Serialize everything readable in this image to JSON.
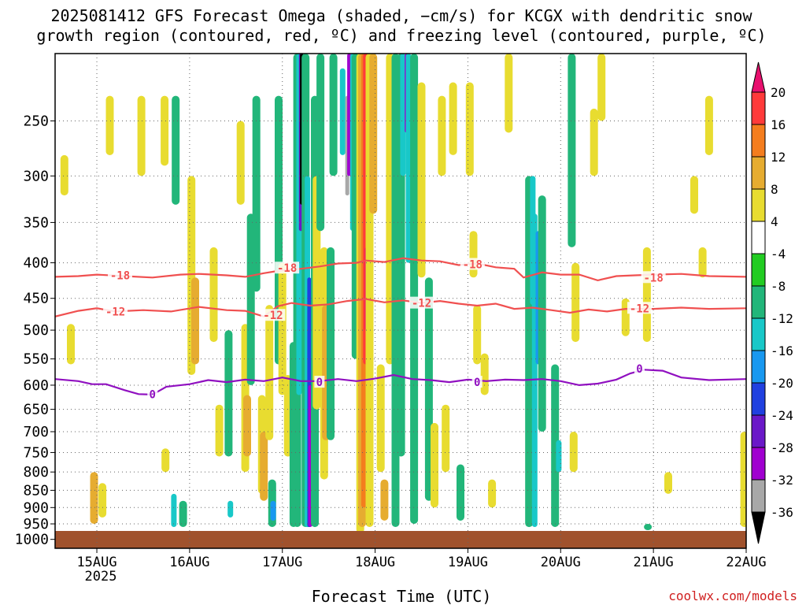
{
  "chart_data": {
    "type": "heatmap",
    "title_line1": "2025081412 GFS Forecast Omega (shaded, −cm/s) for KCGX with dendritic snow",
    "title_line2": "growth region (contoured, red, ºC) and freezing level (contoured, purple, ºC)",
    "xlabel": "Forecast Time (UTC)",
    "ylabel": "",
    "credit": "coolwx.com/models",
    "x_ticks": [
      "15AUG",
      "16AUG",
      "17AUG",
      "18AUG",
      "19AUG",
      "20AUG",
      "21AUG",
      "22AUG"
    ],
    "x_tick_days": [
      1,
      2,
      3,
      4,
      5,
      6,
      7,
      8
    ],
    "x_year": "2025",
    "xlim_days": [
      0.55,
      8.0
    ],
    "y_ticks": [
      250,
      300,
      350,
      400,
      450,
      500,
      550,
      600,
      650,
      700,
      750,
      800,
      850,
      900,
      950,
      1000
    ],
    "ylim_hpa": [
      200,
      1030
    ],
    "y_scale": "log",
    "grid": true,
    "colorbar": {
      "labels": [
        "20",
        "16",
        "12",
        "8",
        "4",
        "-4",
        "-8",
        "-12",
        "-16",
        "-20",
        "-24",
        "-28",
        "-32",
        "-36"
      ],
      "colors": [
        "#e8106e",
        "#ff3a3a",
        "#f47d1e",
        "#e6ac30",
        "#e8dc30",
        "#ffffff",
        "#22cc22",
        "#22b67a",
        "#18c8c8",
        "#1898f0",
        "#2040e0",
        "#6a18c8",
        "#a000d0",
        "#a8a8a8",
        "#000000"
      ]
    },
    "omega_bands": [
      {
        "t": 0.97,
        "p0": 800,
        "p1": 950,
        "v": 8
      },
      {
        "t": 1.06,
        "p0": 830,
        "p1": 930,
        "v": 4
      },
      {
        "t": 0.65,
        "p0": 280,
        "p1": 320,
        "v": 4
      },
      {
        "t": 0.72,
        "p0": 490,
        "p1": 560,
        "v": 4
      },
      {
        "t": 1.14,
        "p0": 230,
        "p1": 280,
        "v": 4
      },
      {
        "t": 1.48,
        "p0": 230,
        "p1": 300,
        "v": 4
      },
      {
        "t": 1.73,
        "p0": 230,
        "p1": 290,
        "v": 4
      },
      {
        "t": 1.85,
        "p0": 230,
        "p1": 330,
        "v": -8
      },
      {
        "t": 1.83,
        "p0": 860,
        "p1": 960,
        "v": -12
      },
      {
        "t": 1.93,
        "p0": 880,
        "p1": 960,
        "v": -8
      },
      {
        "t": 1.74,
        "p0": 740,
        "p1": 800,
        "v": 4
      },
      {
        "t": 2.02,
        "p0": 300,
        "p1": 580,
        "v": 4
      },
      {
        "t": 2.06,
        "p0": 420,
        "p1": 560,
        "v": 8
      },
      {
        "t": 2.26,
        "p0": 380,
        "p1": 520,
        "v": 4
      },
      {
        "t": 2.32,
        "p0": 640,
        "p1": 760,
        "v": 4
      },
      {
        "t": 2.42,
        "p0": 500,
        "p1": 760,
        "v": -8
      },
      {
        "t": 2.44,
        "p0": 880,
        "p1": 930,
        "v": -12
      },
      {
        "t": 2.55,
        "p0": 250,
        "p1": 330,
        "v": 4
      },
      {
        "t": 2.6,
        "p0": 490,
        "p1": 800,
        "v": 4
      },
      {
        "t": 2.62,
        "p0": 620,
        "p1": 760,
        "v": 8
      },
      {
        "t": 2.66,
        "p0": 340,
        "p1": 600,
        "v": -8
      },
      {
        "t": 2.72,
        "p0": 230,
        "p1": 440,
        "v": -8
      },
      {
        "t": 2.78,
        "p0": 620,
        "p1": 860,
        "v": 4
      },
      {
        "t": 2.8,
        "p0": 700,
        "p1": 880,
        "v": 8
      },
      {
        "t": 2.86,
        "p0": 460,
        "p1": 720,
        "v": 4
      },
      {
        "t": 2.89,
        "p0": 820,
        "p1": 960,
        "v": -8
      },
      {
        "t": 2.9,
        "p0": 880,
        "p1": 940,
        "v": -16
      },
      {
        "t": 2.96,
        "p0": 230,
        "p1": 560,
        "v": -8
      },
      {
        "t": 3.0,
        "p0": 400,
        "p1": 620,
        "v": 4
      },
      {
        "t": 3.06,
        "p0": 580,
        "p1": 760,
        "v": 4
      },
      {
        "t": 3.12,
        "p0": 520,
        "p1": 960,
        "v": -8
      },
      {
        "t": 3.16,
        "p0": 200,
        "p1": 960,
        "v": -8
      },
      {
        "t": 3.18,
        "p0": 200,
        "p1": 620,
        "v": -12
      },
      {
        "t": 3.2,
        "p0": 200,
        "p1": 360,
        "v": -24
      },
      {
        "t": 3.21,
        "p0": 200,
        "p1": 330,
        "v": -36
      },
      {
        "t": 3.25,
        "p0": 200,
        "p1": 960,
        "v": -8
      },
      {
        "t": 3.27,
        "p0": 300,
        "p1": 960,
        "v": -12
      },
      {
        "t": 3.29,
        "p0": 420,
        "p1": 960,
        "v": -20
      },
      {
        "t": 3.3,
        "p0": 600,
        "p1": 960,
        "v": -28
      },
      {
        "t": 3.35,
        "p0": 230,
        "p1": 960,
        "v": -8
      },
      {
        "t": 3.37,
        "p0": 300,
        "p1": 650,
        "v": 4
      },
      {
        "t": 3.41,
        "p0": 200,
        "p1": 360,
        "v": -8
      },
      {
        "t": 3.45,
        "p0": 380,
        "p1": 820,
        "v": 4
      },
      {
        "t": 3.47,
        "p0": 460,
        "p1": 720,
        "v": 8
      },
      {
        "t": 3.52,
        "p0": 380,
        "p1": 720,
        "v": -8
      },
      {
        "t": 3.55,
        "p0": 200,
        "p1": 300,
        "v": -8
      },
      {
        "t": 3.65,
        "p0": 210,
        "p1": 280,
        "v": -12
      },
      {
        "t": 3.7,
        "p0": 230,
        "p1": 320,
        "v": -32
      },
      {
        "t": 3.72,
        "p0": 200,
        "p1": 300,
        "v": -28
      },
      {
        "t": 3.76,
        "p0": 200,
        "p1": 360,
        "v": -12
      },
      {
        "t": 3.79,
        "p0": 200,
        "p1": 550,
        "v": -8
      },
      {
        "t": 3.84,
        "p0": 200,
        "p1": 980,
        "v": 4
      },
      {
        "t": 3.86,
        "p0": 200,
        "p1": 960,
        "v": 8
      },
      {
        "t": 3.88,
        "p0": 200,
        "p1": 900,
        "v": 12
      },
      {
        "t": 3.9,
        "p0": 200,
        "p1": 560,
        "v": 16
      },
      {
        "t": 3.91,
        "p0": 380,
        "p1": 500,
        "v": 20
      },
      {
        "t": 3.94,
        "p0": 200,
        "p1": 960,
        "v": 4
      },
      {
        "t": 3.98,
        "p0": 200,
        "p1": 340,
        "v": 8
      },
      {
        "t": 4.06,
        "p0": 560,
        "p1": 800,
        "v": 4
      },
      {
        "t": 4.1,
        "p0": 820,
        "p1": 940,
        "v": 8
      },
      {
        "t": 4.16,
        "p0": 200,
        "p1": 560,
        "v": 4
      },
      {
        "t": 4.22,
        "p0": 200,
        "p1": 960,
        "v": -8
      },
      {
        "t": 4.28,
        "p0": 200,
        "p1": 760,
        "v": -8
      },
      {
        "t": 4.3,
        "p0": 200,
        "p1": 300,
        "v": -12
      },
      {
        "t": 4.34,
        "p0": 200,
        "p1": 260,
        "v": -28
      },
      {
        "t": 4.36,
        "p0": 200,
        "p1": 400,
        "v": -12
      },
      {
        "t": 4.42,
        "p0": 200,
        "p1": 950,
        "v": -8
      },
      {
        "t": 4.5,
        "p0": 220,
        "p1": 420,
        "v": 4
      },
      {
        "t": 4.58,
        "p0": 420,
        "p1": 880,
        "v": -8
      },
      {
        "t": 4.64,
        "p0": 680,
        "p1": 900,
        "v": 4
      },
      {
        "t": 4.72,
        "p0": 230,
        "p1": 300,
        "v": 4
      },
      {
        "t": 4.76,
        "p0": 640,
        "p1": 800,
        "v": 4
      },
      {
        "t": 4.84,
        "p0": 220,
        "p1": 280,
        "v": 4
      },
      {
        "t": 4.92,
        "p0": 780,
        "p1": 940,
        "v": -8
      },
      {
        "t": 5.02,
        "p0": 220,
        "p1": 300,
        "v": 4
      },
      {
        "t": 5.06,
        "p0": 360,
        "p1": 420,
        "v": 4
      },
      {
        "t": 5.1,
        "p0": 460,
        "p1": 560,
        "v": 4
      },
      {
        "t": 5.18,
        "p0": 540,
        "p1": 620,
        "v": 4
      },
      {
        "t": 5.26,
        "p0": 820,
        "p1": 900,
        "v": 4
      },
      {
        "t": 5.44,
        "p0": 200,
        "p1": 260,
        "v": 4
      },
      {
        "t": 5.66,
        "p0": 300,
        "p1": 960,
        "v": -8
      },
      {
        "t": 5.7,
        "p0": 300,
        "p1": 460,
        "v": -12
      },
      {
        "t": 5.72,
        "p0": 340,
        "p1": 960,
        "v": -12
      },
      {
        "t": 5.76,
        "p0": 360,
        "p1": 560,
        "v": -16
      },
      {
        "t": 5.8,
        "p0": 320,
        "p1": 700,
        "v": -8
      },
      {
        "t": 5.94,
        "p0": 560,
        "p1": 960,
        "v": -8
      },
      {
        "t": 5.98,
        "p0": 720,
        "p1": 800,
        "v": -12
      },
      {
        "t": 6.12,
        "p0": 200,
        "p1": 380,
        "v": -8
      },
      {
        "t": 6.16,
        "p0": 400,
        "p1": 520,
        "v": 4
      },
      {
        "t": 6.14,
        "p0": 700,
        "p1": 800,
        "v": 4
      },
      {
        "t": 6.36,
        "p0": 240,
        "p1": 300,
        "v": 4
      },
      {
        "t": 6.44,
        "p0": 200,
        "p1": 250,
        "v": 4
      },
      {
        "t": 6.7,
        "p0": 450,
        "p1": 510,
        "v": 4
      },
      {
        "t": 6.93,
        "p0": 380,
        "p1": 520,
        "v": 4
      },
      {
        "t": 6.94,
        "p0": 950,
        "p1": 970,
        "v": -8
      },
      {
        "t": 7.16,
        "p0": 800,
        "p1": 860,
        "v": 4
      },
      {
        "t": 7.44,
        "p0": 300,
        "p1": 340,
        "v": 4
      },
      {
        "t": 7.53,
        "p0": 380,
        "p1": 420,
        "v": 4
      },
      {
        "t": 7.6,
        "p0": 230,
        "p1": 280,
        "v": 4
      },
      {
        "t": 7.98,
        "p0": 700,
        "p1": 960,
        "v": 4
      }
    ],
    "contours": [
      {
        "label": "-18",
        "color": "#f05050",
        "points": [
          [
            0.55,
            419
          ],
          [
            0.8,
            418
          ],
          [
            1.0,
            416
          ],
          [
            1.3,
            418
          ],
          [
            1.6,
            420
          ],
          [
            1.9,
            416
          ],
          [
            2.1,
            415
          ],
          [
            2.4,
            417
          ],
          [
            2.6,
            419
          ],
          [
            2.8,
            414
          ],
          [
            3.0,
            410
          ],
          [
            3.2,
            408
          ],
          [
            3.4,
            405
          ],
          [
            3.6,
            401
          ],
          [
            3.8,
            400
          ],
          [
            3.9,
            397
          ],
          [
            4.1,
            399
          ],
          [
            4.3,
            394
          ],
          [
            4.5,
            397
          ],
          [
            4.7,
            398
          ],
          [
            4.9,
            403
          ],
          [
            5.1,
            401
          ],
          [
            5.3,
            406
          ],
          [
            5.5,
            408
          ],
          [
            5.6,
            420
          ],
          [
            5.8,
            413
          ],
          [
            6.0,
            416
          ],
          [
            6.2,
            416
          ],
          [
            6.4,
            424
          ],
          [
            6.6,
            418
          ],
          [
            6.8,
            417
          ],
          [
            7.0,
            416
          ],
          [
            7.3,
            415
          ],
          [
            7.6,
            418
          ],
          [
            8.0,
            419
          ]
        ],
        "label_at": [
          [
            1.25,
            417
          ],
          [
            3.05,
            407
          ],
          [
            5.05,
            402
          ],
          [
            7.0,
            420
          ]
        ]
      },
      {
        "label": "-12",
        "color": "#f05050",
        "points": [
          [
            0.55,
            478
          ],
          [
            0.8,
            469
          ],
          [
            1.0,
            465
          ],
          [
            1.2,
            470
          ],
          [
            1.5,
            468
          ],
          [
            1.8,
            470
          ],
          [
            2.1,
            463
          ],
          [
            2.4,
            468
          ],
          [
            2.6,
            469
          ],
          [
            2.8,
            478
          ],
          [
            2.95,
            462
          ],
          [
            3.1,
            457
          ],
          [
            3.3,
            461
          ],
          [
            3.5,
            459
          ],
          [
            3.7,
            454
          ],
          [
            3.9,
            451
          ],
          [
            4.1,
            456
          ],
          [
            4.3,
            453
          ],
          [
            4.5,
            457
          ],
          [
            4.7,
            454
          ],
          [
            4.9,
            458
          ],
          [
            5.1,
            461
          ],
          [
            5.3,
            458
          ],
          [
            5.5,
            466
          ],
          [
            5.7,
            464
          ],
          [
            5.9,
            468
          ],
          [
            6.1,
            472
          ],
          [
            6.3,
            467
          ],
          [
            6.5,
            470
          ],
          [
            6.7,
            466
          ],
          [
            7.0,
            466
          ],
          [
            7.3,
            464
          ],
          [
            7.6,
            466
          ],
          [
            8.0,
            465
          ]
        ],
        "label_at": [
          [
            1.2,
            470
          ],
          [
            2.9,
            476
          ],
          [
            4.5,
            457
          ],
          [
            6.85,
            465
          ]
        ]
      },
      {
        "label": "0",
        "color": "#9010c0",
        "points": [
          [
            0.55,
            588
          ],
          [
            0.8,
            592
          ],
          [
            0.95,
            598
          ],
          [
            1.1,
            598
          ],
          [
            1.3,
            610
          ],
          [
            1.45,
            618
          ],
          [
            1.6,
            619
          ],
          [
            1.75,
            603
          ],
          [
            2.0,
            598
          ],
          [
            2.2,
            590
          ],
          [
            2.4,
            594
          ],
          [
            2.6,
            589
          ],
          [
            2.8,
            592
          ],
          [
            3.0,
            585
          ],
          [
            3.2,
            592
          ],
          [
            3.4,
            592
          ],
          [
            3.6,
            588
          ],
          [
            3.8,
            592
          ],
          [
            4.0,
            587
          ],
          [
            4.2,
            580
          ],
          [
            4.4,
            588
          ],
          [
            4.6,
            590
          ],
          [
            4.8,
            594
          ],
          [
            5.0,
            589
          ],
          [
            5.2,
            592
          ],
          [
            5.4,
            589
          ],
          [
            5.6,
            590
          ],
          [
            5.8,
            588
          ],
          [
            6.0,
            592
          ],
          [
            6.2,
            600
          ],
          [
            6.4,
            597
          ],
          [
            6.6,
            589
          ],
          [
            6.75,
            577
          ],
          [
            6.9,
            570
          ],
          [
            7.1,
            572
          ],
          [
            7.3,
            585
          ],
          [
            7.6,
            590
          ],
          [
            8.0,
            588
          ]
        ],
        "label_at": [
          [
            1.6,
            618
          ],
          [
            3.4,
            594
          ],
          [
            5.1,
            594
          ],
          [
            6.85,
            568
          ]
        ]
      }
    ]
  }
}
